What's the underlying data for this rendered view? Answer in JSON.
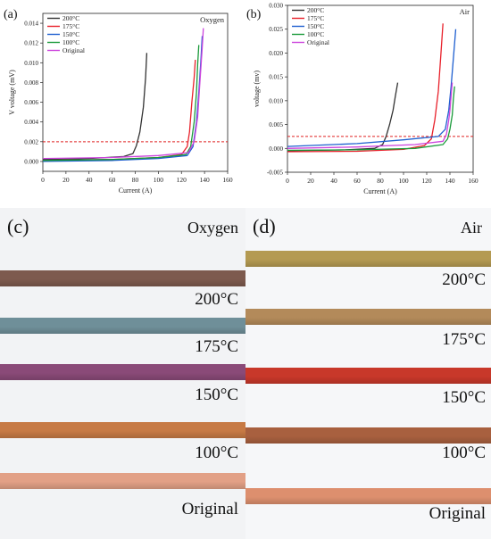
{
  "chart_data": [
    {
      "type": "line",
      "panel_label": "(a)",
      "title": "Oxygen",
      "xlabel": "Current (A)",
      "ylabel": "V voltage (mV)",
      "xlim": [
        0,
        160
      ],
      "ylim": [
        -0.001,
        0.015
      ],
      "xticks": [
        "0",
        "20",
        "40",
        "60",
        "80",
        "100",
        "120",
        "140",
        "160"
      ],
      "yticks": [
        "0.000",
        "0.002",
        "0.004",
        "0.006",
        "0.008",
        "0.010",
        "0.012",
        "0.014"
      ],
      "threshold": 0.002,
      "threshold_color": "#e02020",
      "legend_position": "top-left",
      "series": [
        {
          "name": "200°C",
          "color": "#333333",
          "x": [
            0,
            40,
            70,
            78,
            81,
            84,
            87,
            89,
            90
          ],
          "y": [
            0.0002,
            0.0003,
            0.0005,
            0.0008,
            0.0016,
            0.003,
            0.0055,
            0.0085,
            0.011
          ]
        },
        {
          "name": "175°C",
          "color": "#e8202a",
          "x": [
            0,
            60,
            100,
            120,
            125,
            127,
            129,
            131,
            132
          ],
          "y": [
            0.0001,
            0.0002,
            0.0004,
            0.0007,
            0.0015,
            0.003,
            0.006,
            0.0085,
            0.0103
          ]
        },
        {
          "name": "150°C",
          "color": "#1f5fd0",
          "x": [
            0,
            60,
            100,
            125,
            130,
            133,
            135,
            137,
            138
          ],
          "y": [
            0.0,
            0.0001,
            0.0003,
            0.0006,
            0.0015,
            0.004,
            0.007,
            0.0105,
            0.0127
          ]
        },
        {
          "name": "100°C",
          "color": "#1a9a3a",
          "x": [
            0,
            60,
            100,
            124,
            128,
            131,
            133,
            134,
            135
          ],
          "y": [
            0.0001,
            0.0002,
            0.0004,
            0.0007,
            0.0015,
            0.004,
            0.007,
            0.0098,
            0.0118
          ]
        },
        {
          "name": "Original",
          "color": "#cc44dd",
          "x": [
            0,
            60,
            100,
            126,
            131,
            134,
            136,
            138,
            139
          ],
          "y": [
            0.0003,
            0.0004,
            0.0006,
            0.0009,
            0.002,
            0.0045,
            0.008,
            0.0115,
            0.0135
          ]
        }
      ]
    },
    {
      "type": "line",
      "panel_label": "(b)",
      "title": "Air",
      "xlabel": "Current (A)",
      "ylabel": "voltage (mv)",
      "xlim": [
        0,
        160
      ],
      "ylim": [
        -0.005,
        0.03
      ],
      "xticks": [
        "0",
        "20",
        "40",
        "60",
        "80",
        "100",
        "120",
        "140",
        "160"
      ],
      "yticks": [
        "-0.005",
        "0.000",
        "0.005",
        "0.010",
        "0.015",
        "0.020",
        "0.025",
        "0.030"
      ],
      "threshold": 0.0025,
      "threshold_color": "#e02020",
      "legend_position": "top-left",
      "series": [
        {
          "name": "200°C",
          "color": "#333333",
          "x": [
            0,
            50,
            75,
            82,
            85,
            88,
            91,
            93,
            95
          ],
          "y": [
            -0.0005,
            -0.0003,
            0.0,
            0.0008,
            0.0025,
            0.005,
            0.008,
            0.011,
            0.0138
          ]
        },
        {
          "name": "175°C",
          "color": "#e8202a",
          "x": [
            0,
            60,
            100,
            118,
            124,
            127,
            130,
            132,
            134
          ],
          "y": [
            -0.0007,
            -0.0006,
            -0.0002,
            0.0006,
            0.002,
            0.006,
            0.012,
            0.019,
            0.0262
          ]
        },
        {
          "name": "150°C",
          "color": "#1f5fd0",
          "x": [
            0,
            60,
            100,
            130,
            136,
            139,
            141,
            143,
            145
          ],
          "y": [
            0.0004,
            0.001,
            0.0018,
            0.0025,
            0.004,
            0.008,
            0.013,
            0.019,
            0.025
          ]
        },
        {
          "name": "100°C",
          "color": "#1a9a3a",
          "x": [
            0,
            60,
            110,
            134,
            138,
            140,
            142,
            143,
            144
          ],
          "y": [
            -0.0004,
            -0.0003,
            0.0,
            0.0008,
            0.002,
            0.004,
            0.007,
            0.0105,
            0.013
          ]
        },
        {
          "name": "Original",
          "color": "#cc44dd",
          "x": [
            0,
            60,
            110,
            134,
            137,
            139,
            140,
            141,
            142
          ],
          "y": [
            0.0,
            0.0003,
            0.0008,
            0.0015,
            0.003,
            0.006,
            0.008,
            0.011,
            0.0138
          ]
        }
      ]
    }
  ],
  "photos": {
    "c": {
      "panel_label": "(c)",
      "title": "Oxygen",
      "labels": [
        "200°C",
        "175°C",
        "150°C",
        "100°C",
        "Original"
      ],
      "strip_colors": [
        "#7d5a4e",
        "#6f8f99",
        "#8a4a78",
        "#c77a45",
        "#e2a086"
      ]
    },
    "d": {
      "panel_label": "(d)",
      "title": "Air",
      "labels": [
        "200°C",
        "175°C",
        "150°C",
        "100°C",
        "Original"
      ],
      "strip_colors": [
        "#b49a52",
        "#b38a5a",
        "#c8382a",
        "#a8603f",
        "#dd8f6e"
      ]
    }
  }
}
